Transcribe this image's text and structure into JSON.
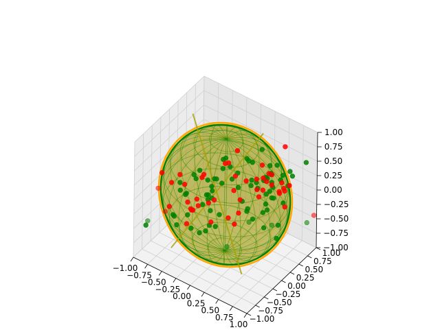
{
  "chart_data": {
    "type": "scatter",
    "projection": "3d",
    "xlim": [
      -1.0,
      1.0
    ],
    "ylim": [
      -1.0,
      1.0
    ],
    "zlim": [
      -1.0,
      1.0
    ],
    "grid": true,
    "x_ticks": [
      "−1.00",
      "−0.75",
      "−0.50",
      "−0.25",
      "0.00",
      "0.25",
      "0.50",
      "0.75",
      "1.00"
    ],
    "y_ticks": [
      "−1.00",
      "−0.75",
      "−0.50",
      "−0.25",
      "0.00",
      "0.25",
      "0.50",
      "0.75",
      "1.00"
    ],
    "z_ticks": [
      "−1.00",
      "−0.75",
      "−0.50",
      "−0.25",
      "0.00",
      "0.25",
      "0.50",
      "0.75",
      "1.00"
    ],
    "surfaces": [
      {
        "shape": "sphere",
        "radius": 1.0,
        "color": "#ffa500"
      },
      {
        "shape": "sphere",
        "radius": 0.97,
        "color": "#008000"
      }
    ],
    "series": [
      {
        "color": "#008000",
        "points": [
          [
            0.05,
            -0.84,
            0.93
          ],
          [
            0.86,
            0.91,
            0.46
          ],
          [
            0.32,
            0.08,
            0.74
          ],
          [
            0.35,
            0.16,
            0.24
          ],
          [
            0.25,
            0.36,
            0.48
          ],
          [
            0.47,
            0.39,
            0.31
          ],
          [
            0.76,
            0.4,
            0.48
          ],
          [
            0.66,
            0.22,
            0.57
          ],
          [
            0.69,
            -0.21,
            0.57
          ],
          [
            -0.01,
            -0.31,
            0.45
          ],
          [
            -0.34,
            -0.36,
            0.39
          ],
          [
            0.81,
            -0.25,
            0.23
          ],
          [
            -0.38,
            -0.36,
            -0.56
          ],
          [
            0.73,
            0.0,
            0.64
          ],
          [
            0.81,
            -0.06,
            0.49
          ],
          [
            0.75,
            -0.03,
            0.12
          ],
          [
            0.81,
            -0.16,
            0.5
          ],
          [
            0.97,
            0.07,
            0.29
          ],
          [
            0.12,
            0.15,
            0.35
          ],
          [
            0.34,
            0.33,
            0.19
          ],
          [
            -0.51,
            -0.48,
            0.24
          ],
          [
            0.43,
            0.57,
            0.39
          ],
          [
            -0.52,
            -0.55,
            -0.46
          ],
          [
            -0.26,
            -0.43,
            0.4
          ],
          [
            -0.83,
            -0.93,
            -0.4
          ],
          [
            0.79,
            0.56,
            0.47
          ],
          [
            0.27,
            0.31,
            0.21
          ],
          [
            -0.04,
            -0.01,
            0.6
          ],
          [
            -0.16,
            -0.24,
            0.06
          ],
          [
            0.54,
            0.48,
            0.12
          ],
          [
            -0.42,
            -0.62,
            0.23
          ],
          [
            0.04,
            -0.15,
            0.56
          ],
          [
            0.46,
            0.41,
            -0.17
          ],
          [
            0.78,
            0.52,
            0.24
          ],
          [
            0.58,
            0.38,
            0.28
          ],
          [
            0.59,
            0.42,
            -0.01
          ],
          [
            -0.02,
            0.03,
            0.61
          ],
          [
            0.01,
            0.17,
            0.18
          ],
          [
            -0.04,
            -0.2,
            0.37
          ],
          [
            0.36,
            0.2,
            -0.36
          ],
          [
            0.46,
            0.73,
            0.32
          ],
          [
            -0.07,
            -0.28,
            0.07
          ],
          [
            -0.17,
            -0.27,
            0.07
          ],
          [
            0.83,
            1.0,
            -0.65
          ],
          [
            -0.21,
            -0.11,
            -0.57
          ],
          [
            -0.98,
            -0.63,
            -0.57
          ],
          [
            -0.36,
            -0.15,
            -0.75
          ],
          [
            -0.14,
            -0.43,
            0.01
          ],
          [
            0.7,
            0.78,
            0.22
          ],
          [
            -0.1,
            -0.27,
            -0.17
          ],
          [
            0.65,
            0.52,
            0.28
          ],
          [
            0.59,
            0.13,
            0.46
          ],
          [
            0.3,
            -0.01,
            0.04
          ],
          [
            0.21,
            0.02,
            0.22
          ],
          [
            0.25,
            0.25,
            0.57
          ],
          [
            0.54,
            0.23,
            -0.44
          ],
          [
            -0.07,
            -0.27,
            0.19
          ],
          [
            -0.03,
            0.18,
            0.37
          ],
          [
            -0.61,
            -0.51,
            -0.35
          ],
          [
            -0.1,
            -0.12,
            -0.53
          ],
          [
            0.01,
            -0.19,
            -0.23
          ],
          [
            -0.18,
            -0.21,
            -0.05
          ],
          [
            -0.45,
            -0.39,
            0.03
          ],
          [
            -0.37,
            -0.55,
            0.14
          ],
          [
            -0.39,
            -0.84,
            -0.08
          ],
          [
            0.77,
            0.26,
            -0.3
          ],
          [
            0.78,
            0.2,
            -0.49
          ],
          [
            -0.48,
            -0.3,
            -0.41
          ],
          [
            -0.18,
            -0.27,
            -0.56
          ],
          [
            0.51,
            0.51,
            -0.57
          ],
          [
            0.3,
            0.82,
            0.03
          ],
          [
            -0.08,
            -0.27,
            0.26
          ],
          [
            0.51,
            0.5,
            -0.09
          ],
          [
            0.06,
            -0.21,
            0.35
          ],
          [
            0.1,
            0.46,
            -0.5
          ],
          [
            0.12,
            0.45,
            -0.44
          ],
          [
            0.05,
            0.61,
            -0.8
          ],
          [
            -0.12,
            -0.32,
            0.38
          ],
          [
            0.17,
            0.77,
            0.43
          ],
          [
            -0.02,
            0.09,
            -0.96
          ]
        ]
      },
      {
        "color": "#ff0000",
        "points": [
          [
            -0.15,
            -0.44,
            0.48
          ],
          [
            0.46,
            0.43,
            0.21
          ],
          [
            -0.35,
            -0.61,
            0.36
          ],
          [
            -0.58,
            -0.61,
            0.28
          ],
          [
            0.57,
            0.4,
            0.4
          ],
          [
            0.4,
            0.43,
            0.24
          ],
          [
            -0.26,
            -0.36,
            -0.11
          ],
          [
            0.11,
            0.1,
            0.32
          ],
          [
            0.39,
            0.44,
            0.02
          ],
          [
            0.26,
            0.47,
            0.13
          ],
          [
            0.44,
            0.33,
            0.54
          ],
          [
            0.37,
            0.3,
            0.1
          ],
          [
            -0.22,
            0.04,
            -0.22
          ],
          [
            0.82,
            0.2,
            0.34
          ],
          [
            -0.33,
            -0.46,
            -0.14
          ],
          [
            -0.38,
            -0.35,
            -0.25
          ],
          [
            -0.44,
            -0.21,
            -0.36
          ],
          [
            -0.13,
            -0.2,
            -0.42
          ],
          [
            -0.02,
            0.12,
            -0.48
          ],
          [
            0.53,
            0.69,
            -0.11
          ],
          [
            -0.88,
            -0.5,
            -0.03
          ],
          [
            0.71,
            0.55,
            -0.18
          ],
          [
            0.08,
            0.11,
            0.05
          ],
          [
            -0.01,
            0.35,
            0.56
          ],
          [
            -0.01,
            0.0,
            0.54
          ],
          [
            -0.8,
            -0.42,
            -0.44
          ],
          [
            0.41,
            0.29,
            0.0
          ],
          [
            0.68,
            0.59,
            0.06
          ],
          [
            0.94,
            1.02,
            -0.48
          ],
          [
            -0.23,
            -0.45,
            0.07
          ],
          [
            0.55,
            0.81,
            0.64
          ],
          [
            0.43,
            0.63,
            0.02
          ],
          [
            0.66,
            0.76,
            0.05
          ],
          [
            -0.3,
            -0.6,
            0.07
          ],
          [
            -0.41,
            -0.95,
            0.14
          ],
          [
            0.0,
            -0.49,
            0.14
          ],
          [
            0.21,
            0.08,
            -0.03
          ],
          [
            0.12,
            0.07,
            -0.49
          ],
          [
            -0.44,
            -0.6,
            0.48
          ],
          [
            -0.01,
            0.1,
            0.49
          ],
          [
            0.53,
            0.38,
            0.41
          ],
          [
            -0.04,
            -0.57,
            0.66
          ],
          [
            -0.32,
            -0.59,
            -0.32
          ],
          [
            -0.81,
            -0.51,
            0.28
          ],
          [
            0.72,
            0.44,
            0.31
          ],
          [
            0.04,
            0.32,
            -0.48
          ],
          [
            0.75,
            0.45,
            0.22
          ],
          [
            0.3,
            0.1,
            0.33
          ]
        ]
      }
    ]
  }
}
